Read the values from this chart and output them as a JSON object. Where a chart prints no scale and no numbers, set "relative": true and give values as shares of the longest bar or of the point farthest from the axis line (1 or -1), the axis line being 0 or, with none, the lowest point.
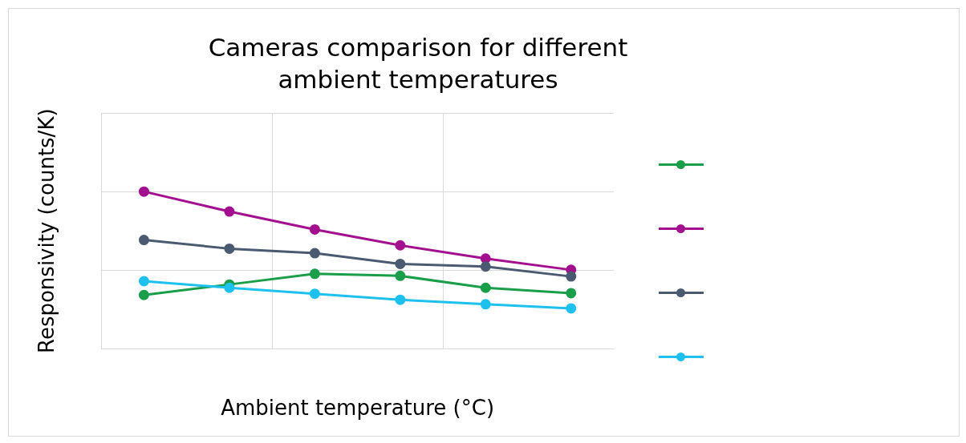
{
  "chart_data": {
    "type": "line",
    "title": "Cameras comparison for different ambient temperatures",
    "xlabel": "Ambient temperature (°C)",
    "ylabel": "Responsivity (counts/K)",
    "relative": true,
    "categories": [
      null,
      null,
      null,
      null,
      null,
      null
    ],
    "series": [
      {
        "color": "#1a9e4a",
        "values": [
          0.342,
          0.409,
          0.477,
          0.464,
          0.388,
          0.354
        ]
      },
      {
        "color": "#a3108f",
        "values": [
          1,
          0.873,
          0.759,
          0.658,
          0.574,
          0.502
        ]
      },
      {
        "color": "#4a5a70",
        "values": [
          0.692,
          0.637,
          0.608,
          0.54,
          0.523,
          0.46
        ]
      },
      {
        "color": "#1ec0ee",
        "values": [
          0.43,
          0.388,
          0.35,
          0.312,
          0.283,
          0.257
        ]
      }
    ],
    "grid": true,
    "marker": "circle",
    "line_style": "solid"
  }
}
